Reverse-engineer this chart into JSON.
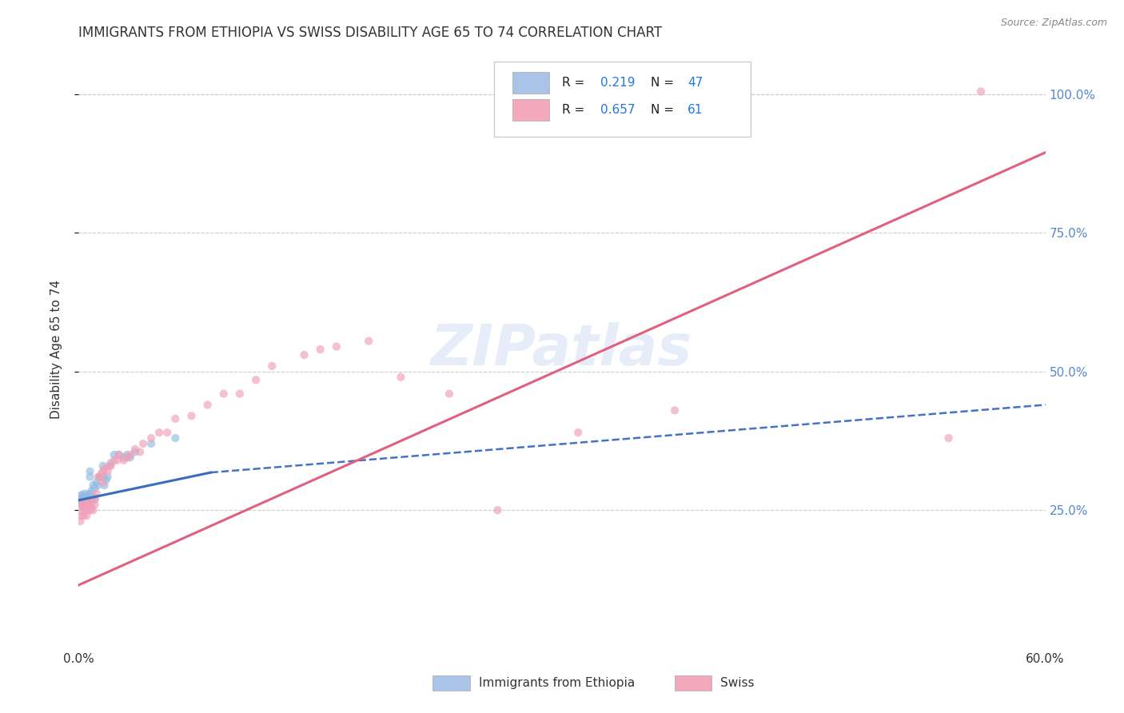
{
  "title": "IMMIGRANTS FROM ETHIOPIA VS SWISS DISABILITY AGE 65 TO 74 CORRELATION CHART",
  "source": "Source: ZipAtlas.com",
  "ylabel": "Disability Age 65 to 74",
  "x_min": 0.0,
  "x_max": 0.6,
  "y_min": 0.0,
  "y_max": 1.08,
  "x_ticks": [
    0.0,
    0.1,
    0.2,
    0.3,
    0.4,
    0.5,
    0.6
  ],
  "x_tick_labels": [
    "0.0%",
    "",
    "",
    "",
    "",
    "",
    "60.0%"
  ],
  "y_ticks": [
    0.25,
    0.5,
    0.75,
    1.0
  ],
  "y_tick_labels": [
    "25.0%",
    "50.0%",
    "75.0%",
    "100.0%"
  ],
  "legend_color1": "#aac4e8",
  "legend_color2": "#f4a8bc",
  "watermark": "ZIPatlas",
  "scatter_blue": {
    "x": [
      0.001,
      0.001,
      0.001,
      0.002,
      0.002,
      0.002,
      0.002,
      0.003,
      0.003,
      0.003,
      0.003,
      0.004,
      0.004,
      0.004,
      0.004,
      0.005,
      0.005,
      0.005,
      0.006,
      0.006,
      0.006,
      0.007,
      0.007,
      0.007,
      0.008,
      0.008,
      0.009,
      0.009,
      0.01,
      0.01,
      0.011,
      0.012,
      0.013,
      0.015,
      0.015,
      0.016,
      0.017,
      0.018,
      0.02,
      0.022,
      0.025,
      0.028,
      0.03,
      0.032,
      0.035,
      0.045,
      0.06
    ],
    "y": [
      0.265,
      0.27,
      0.275,
      0.26,
      0.268,
      0.272,
      0.278,
      0.255,
      0.265,
      0.27,
      0.275,
      0.258,
      0.265,
      0.272,
      0.28,
      0.26,
      0.268,
      0.275,
      0.262,
      0.27,
      0.278,
      0.28,
      0.31,
      0.32,
      0.27,
      0.285,
      0.275,
      0.295,
      0.27,
      0.29,
      0.3,
      0.295,
      0.31,
      0.31,
      0.33,
      0.295,
      0.305,
      0.31,
      0.335,
      0.35,
      0.35,
      0.345,
      0.35,
      0.345,
      0.355,
      0.37,
      0.38
    ],
    "color": "#93bde0",
    "alpha": 0.65,
    "size": 55
  },
  "scatter_pink": {
    "x": [
      0.001,
      0.001,
      0.002,
      0.002,
      0.003,
      0.003,
      0.003,
      0.004,
      0.004,
      0.005,
      0.005,
      0.005,
      0.006,
      0.006,
      0.007,
      0.007,
      0.008,
      0.008,
      0.009,
      0.01,
      0.01,
      0.011,
      0.012,
      0.013,
      0.014,
      0.015,
      0.015,
      0.016,
      0.018,
      0.019,
      0.02,
      0.022,
      0.024,
      0.025,
      0.028,
      0.03,
      0.032,
      0.035,
      0.038,
      0.04,
      0.045,
      0.05,
      0.055,
      0.06,
      0.07,
      0.08,
      0.09,
      0.1,
      0.11,
      0.12,
      0.14,
      0.15,
      0.16,
      0.18,
      0.2,
      0.23,
      0.26,
      0.31,
      0.37,
      0.54,
      0.56
    ],
    "y": [
      0.23,
      0.25,
      0.24,
      0.26,
      0.24,
      0.255,
      0.265,
      0.25,
      0.26,
      0.24,
      0.255,
      0.265,
      0.25,
      0.26,
      0.25,
      0.265,
      0.255,
      0.265,
      0.25,
      0.26,
      0.27,
      0.28,
      0.31,
      0.31,
      0.315,
      0.3,
      0.32,
      0.325,
      0.32,
      0.33,
      0.33,
      0.34,
      0.34,
      0.35,
      0.34,
      0.345,
      0.35,
      0.36,
      0.355,
      0.37,
      0.38,
      0.39,
      0.39,
      0.415,
      0.42,
      0.44,
      0.46,
      0.46,
      0.485,
      0.51,
      0.53,
      0.54,
      0.545,
      0.555,
      0.49,
      0.46,
      0.25,
      0.39,
      0.43,
      0.38,
      1.005
    ],
    "color": "#f0a0b8",
    "alpha": 0.65,
    "size": 55
  },
  "line_blue_solid": {
    "x": [
      0.0,
      0.082
    ],
    "y": [
      0.268,
      0.318
    ],
    "color": "#3a6bbf",
    "lw": 2.2
  },
  "line_blue_dashed": {
    "x": [
      0.082,
      0.6
    ],
    "y": [
      0.318,
      0.44
    ],
    "color": "#4472c4",
    "lw": 1.8,
    "linestyle": "--"
  },
  "line_pink": {
    "x": [
      0.0,
      0.6
    ],
    "y": [
      0.115,
      0.895
    ],
    "color": "#e06080",
    "lw": 2.2
  },
  "grid_color": "#cccccc",
  "grid_linestyle": "--",
  "bg_color": "#ffffff",
  "title_fontsize": 12,
  "label_fontsize": 11,
  "tick_fontsize": 11,
  "tick_color_y": "#5588cc",
  "tick_color_x": "#333333"
}
